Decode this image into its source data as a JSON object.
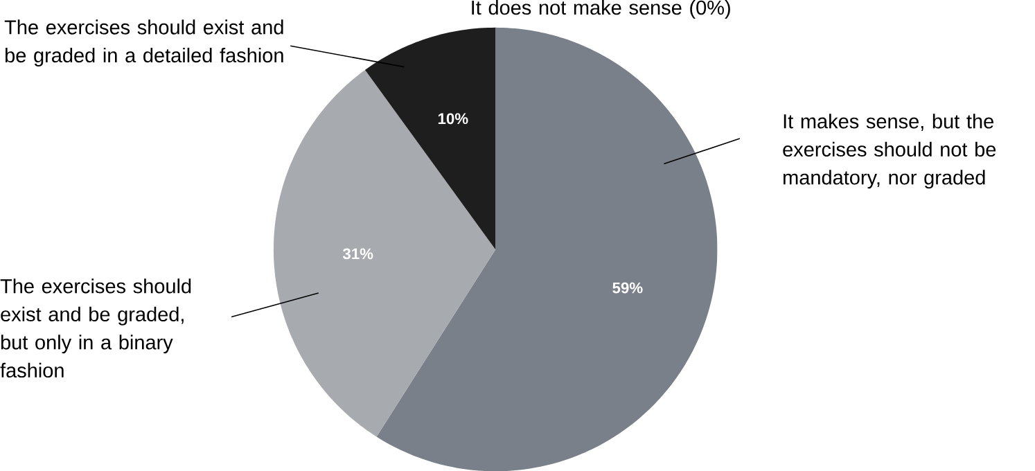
{
  "chart_data": {
    "type": "pie",
    "categories": [
      "It makes sense, but the exercises should not be mandatory, nor graded",
      "The exercises should exist and be graded, but only in a binary fashion",
      "The exercises should exist and be graded in a detailed fashion",
      "It does not make sense (0%)"
    ],
    "values": [
      59,
      31,
      10,
      0
    ],
    "colors": [
      "#7a8089",
      "#a7aaae",
      "#1e1e1e",
      "#555555"
    ],
    "value_labels": [
      "59%",
      "31%",
      "10%",
      null
    ]
  }
}
